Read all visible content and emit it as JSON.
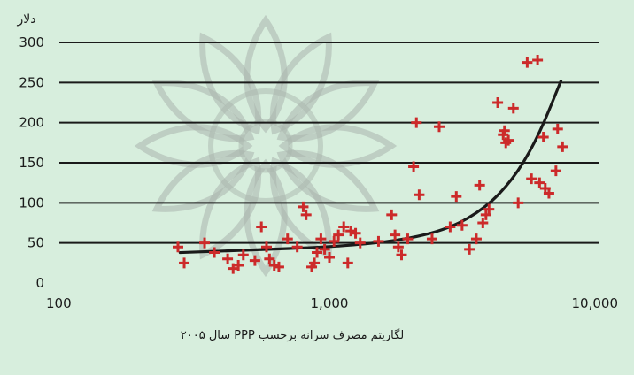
{
  "chart_data": {
    "type": "scatter",
    "ylabel": "دلار",
    "xlabel": "لگاریتم مصرف سرانه برحسب PPP سال ۲۰۰۵",
    "xscale": "log",
    "xlim": [
      100,
      10000
    ],
    "ylim": [
      0,
      300
    ],
    "x_ticks": [
      100,
      1000,
      10000
    ],
    "x_tick_labels": [
      "100",
      "1,000",
      "10,000"
    ],
    "y_ticks": [
      0,
      50,
      100,
      150,
      200,
      250,
      300
    ],
    "y_tick_labels": [
      "0",
      "50",
      "100",
      "150",
      "200",
      "250",
      "300"
    ],
    "grid": "horizontal",
    "colors": {
      "background": "#d7eedd",
      "points": "#cc2a2a",
      "curve": "#1a1a1a",
      "grid": "#1a1a1a",
      "watermark": "#a9b5ad"
    },
    "watermark": "ornamental-rosette",
    "series": [
      {
        "kind": "points",
        "points": [
          [
            275,
            45
          ],
          [
            290,
            25
          ],
          [
            345,
            50
          ],
          [
            375,
            38
          ],
          [
            420,
            30
          ],
          [
            440,
            18
          ],
          [
            460,
            22
          ],
          [
            480,
            35
          ],
          [
            530,
            28
          ],
          [
            560,
            70
          ],
          [
            585,
            45
          ],
          [
            600,
            30
          ],
          [
            625,
            22
          ],
          [
            650,
            20
          ],
          [
            700,
            55
          ],
          [
            760,
            45
          ],
          [
            800,
            95
          ],
          [
            820,
            85
          ],
          [
            860,
            20
          ],
          [
            880,
            25
          ],
          [
            900,
            38
          ],
          [
            930,
            55
          ],
          [
            960,
            42
          ],
          [
            1000,
            32
          ],
          [
            1040,
            52
          ],
          [
            1080,
            60
          ],
          [
            1130,
            70
          ],
          [
            1170,
            25
          ],
          [
            1200,
            65
          ],
          [
            1250,
            62
          ],
          [
            1300,
            50
          ],
          [
            1520,
            52
          ],
          [
            1700,
            85
          ],
          [
            1750,
            60
          ],
          [
            1800,
            45
          ],
          [
            1850,
            35
          ],
          [
            1950,
            55
          ],
          [
            2050,
            145
          ],
          [
            2100,
            200
          ],
          [
            2150,
            110
          ],
          [
            2400,
            55
          ],
          [
            2550,
            195
          ],
          [
            2800,
            70
          ],
          [
            2950,
            108
          ],
          [
            3100,
            72
          ],
          [
            3300,
            42
          ],
          [
            3500,
            55
          ],
          [
            3600,
            122
          ],
          [
            3700,
            75
          ],
          [
            3800,
            85
          ],
          [
            3900,
            92
          ],
          [
            4200,
            225
          ],
          [
            4400,
            185
          ],
          [
            4450,
            190
          ],
          [
            4500,
            175
          ],
          [
            4600,
            178
          ],
          [
            4800,
            218
          ],
          [
            5000,
            100
          ],
          [
            5400,
            275
          ],
          [
            5600,
            130
          ],
          [
            5900,
            278
          ],
          [
            6000,
            125
          ],
          [
            6200,
            182
          ],
          [
            6300,
            118
          ],
          [
            6500,
            112
          ],
          [
            6900,
            140
          ],
          [
            7000,
            192
          ],
          [
            7300,
            170
          ]
        ]
      },
      {
        "kind": "trend",
        "points": [
          [
            280,
            38
          ],
          [
            500,
            41
          ],
          [
            1000,
            45
          ],
          [
            1500,
            50
          ],
          [
            2000,
            56
          ],
          [
            2500,
            64
          ],
          [
            3000,
            74
          ],
          [
            3500,
            87
          ],
          [
            4000,
            102
          ],
          [
            4500,
            120
          ],
          [
            5000,
            140
          ],
          [
            5500,
            163
          ],
          [
            6000,
            188
          ],
          [
            6500,
            215
          ],
          [
            7000,
            242
          ],
          [
            7200,
            252
          ]
        ]
      }
    ]
  }
}
